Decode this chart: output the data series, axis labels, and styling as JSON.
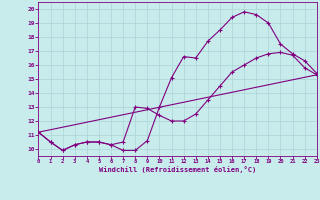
{
  "xlabel": "Windchill (Refroidissement éolien,°C)",
  "bg_color": "#c8ecec",
  "grid_color": "#b0d8d8",
  "line_color": "#800080",
  "xmin": 0,
  "xmax": 23,
  "ymin": 9.5,
  "ymax": 20.5,
  "yticks": [
    10,
    11,
    12,
    13,
    14,
    15,
    16,
    17,
    18,
    19,
    20
  ],
  "xticks": [
    0,
    1,
    2,
    3,
    4,
    5,
    6,
    7,
    8,
    9,
    10,
    11,
    12,
    13,
    14,
    15,
    16,
    17,
    18,
    19,
    20,
    21,
    22,
    23
  ],
  "curve1_x": [
    0,
    1,
    2,
    3,
    4,
    5,
    6,
    7,
    8,
    9,
    10,
    11,
    12,
    13,
    14,
    15,
    16,
    17,
    18,
    19,
    20,
    21,
    22,
    23
  ],
  "curve1_y": [
    11.2,
    10.5,
    9.9,
    10.3,
    10.5,
    10.5,
    10.3,
    9.9,
    9.9,
    10.6,
    13.0,
    15.1,
    16.6,
    16.5,
    17.7,
    18.5,
    19.4,
    19.8,
    19.6,
    19.0,
    17.5,
    16.8,
    16.3,
    15.4
  ],
  "curve2_x": [
    0,
    1,
    2,
    3,
    4,
    5,
    6,
    7,
    8,
    9,
    10,
    11,
    12,
    13,
    14,
    15,
    16,
    17,
    18,
    19,
    20,
    21,
    22,
    23
  ],
  "curve2_y": [
    11.2,
    10.5,
    9.9,
    10.3,
    10.5,
    10.5,
    10.3,
    10.5,
    13.0,
    12.9,
    12.4,
    12.0,
    12.0,
    12.5,
    13.5,
    14.5,
    15.5,
    16.0,
    16.5,
    16.8,
    16.9,
    16.7,
    15.8,
    15.3
  ],
  "curve3_x": [
    0,
    23
  ],
  "curve3_y": [
    11.2,
    15.3
  ]
}
